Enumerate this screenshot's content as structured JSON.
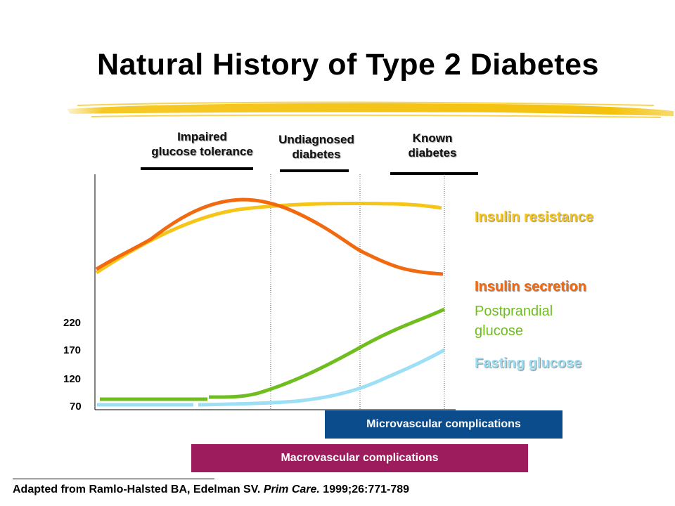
{
  "title": "Natural History of Type 2 Diabetes",
  "stages": {
    "impaired": [
      "Impaired",
      "glucose tolerance"
    ],
    "undiagnosed": [
      "Undiagnosed",
      "diabetes"
    ],
    "known": [
      "Known",
      "diabetes"
    ]
  },
  "legend": {
    "insulin_resistance": "Insulin resistance",
    "insulin_secretion": "Insulin secretion",
    "postprandial": [
      "Postprandial",
      "glucose"
    ],
    "fasting": "Fasting glucose"
  },
  "y_ticks": [
    "220",
    "170",
    "120",
    "70"
  ],
  "complications": {
    "microvascular": "Microvascular complications",
    "macrovascular": "Macrovascular complications"
  },
  "citation": {
    "before": "Adapted from Ramlo-Halsted BA, Edelman SV. ",
    "journal": "Prim Care.",
    "after": " 1999;26:771-789"
  },
  "colors": {
    "insulin_resistance": "#f5c518",
    "insulin_secretion": "#f26a10",
    "postprandial": "#6fbe1e",
    "fasting": "#9ddff5",
    "microvascular": "#0b4c8c",
    "macrovascular": "#9c1c5e",
    "brush": "#f4c20d"
  },
  "chart_data": {
    "type": "line",
    "series": [
      {
        "name": "Insulin resistance",
        "shape": "rises then plateaus"
      },
      {
        "name": "Insulin secretion",
        "shape": "rises, peaks, then declines"
      },
      {
        "name": "Postprandial glucose",
        "shape": "flat then rising"
      },
      {
        "name": "Fasting glucose",
        "shape": "flat then rising later"
      }
    ]
  }
}
